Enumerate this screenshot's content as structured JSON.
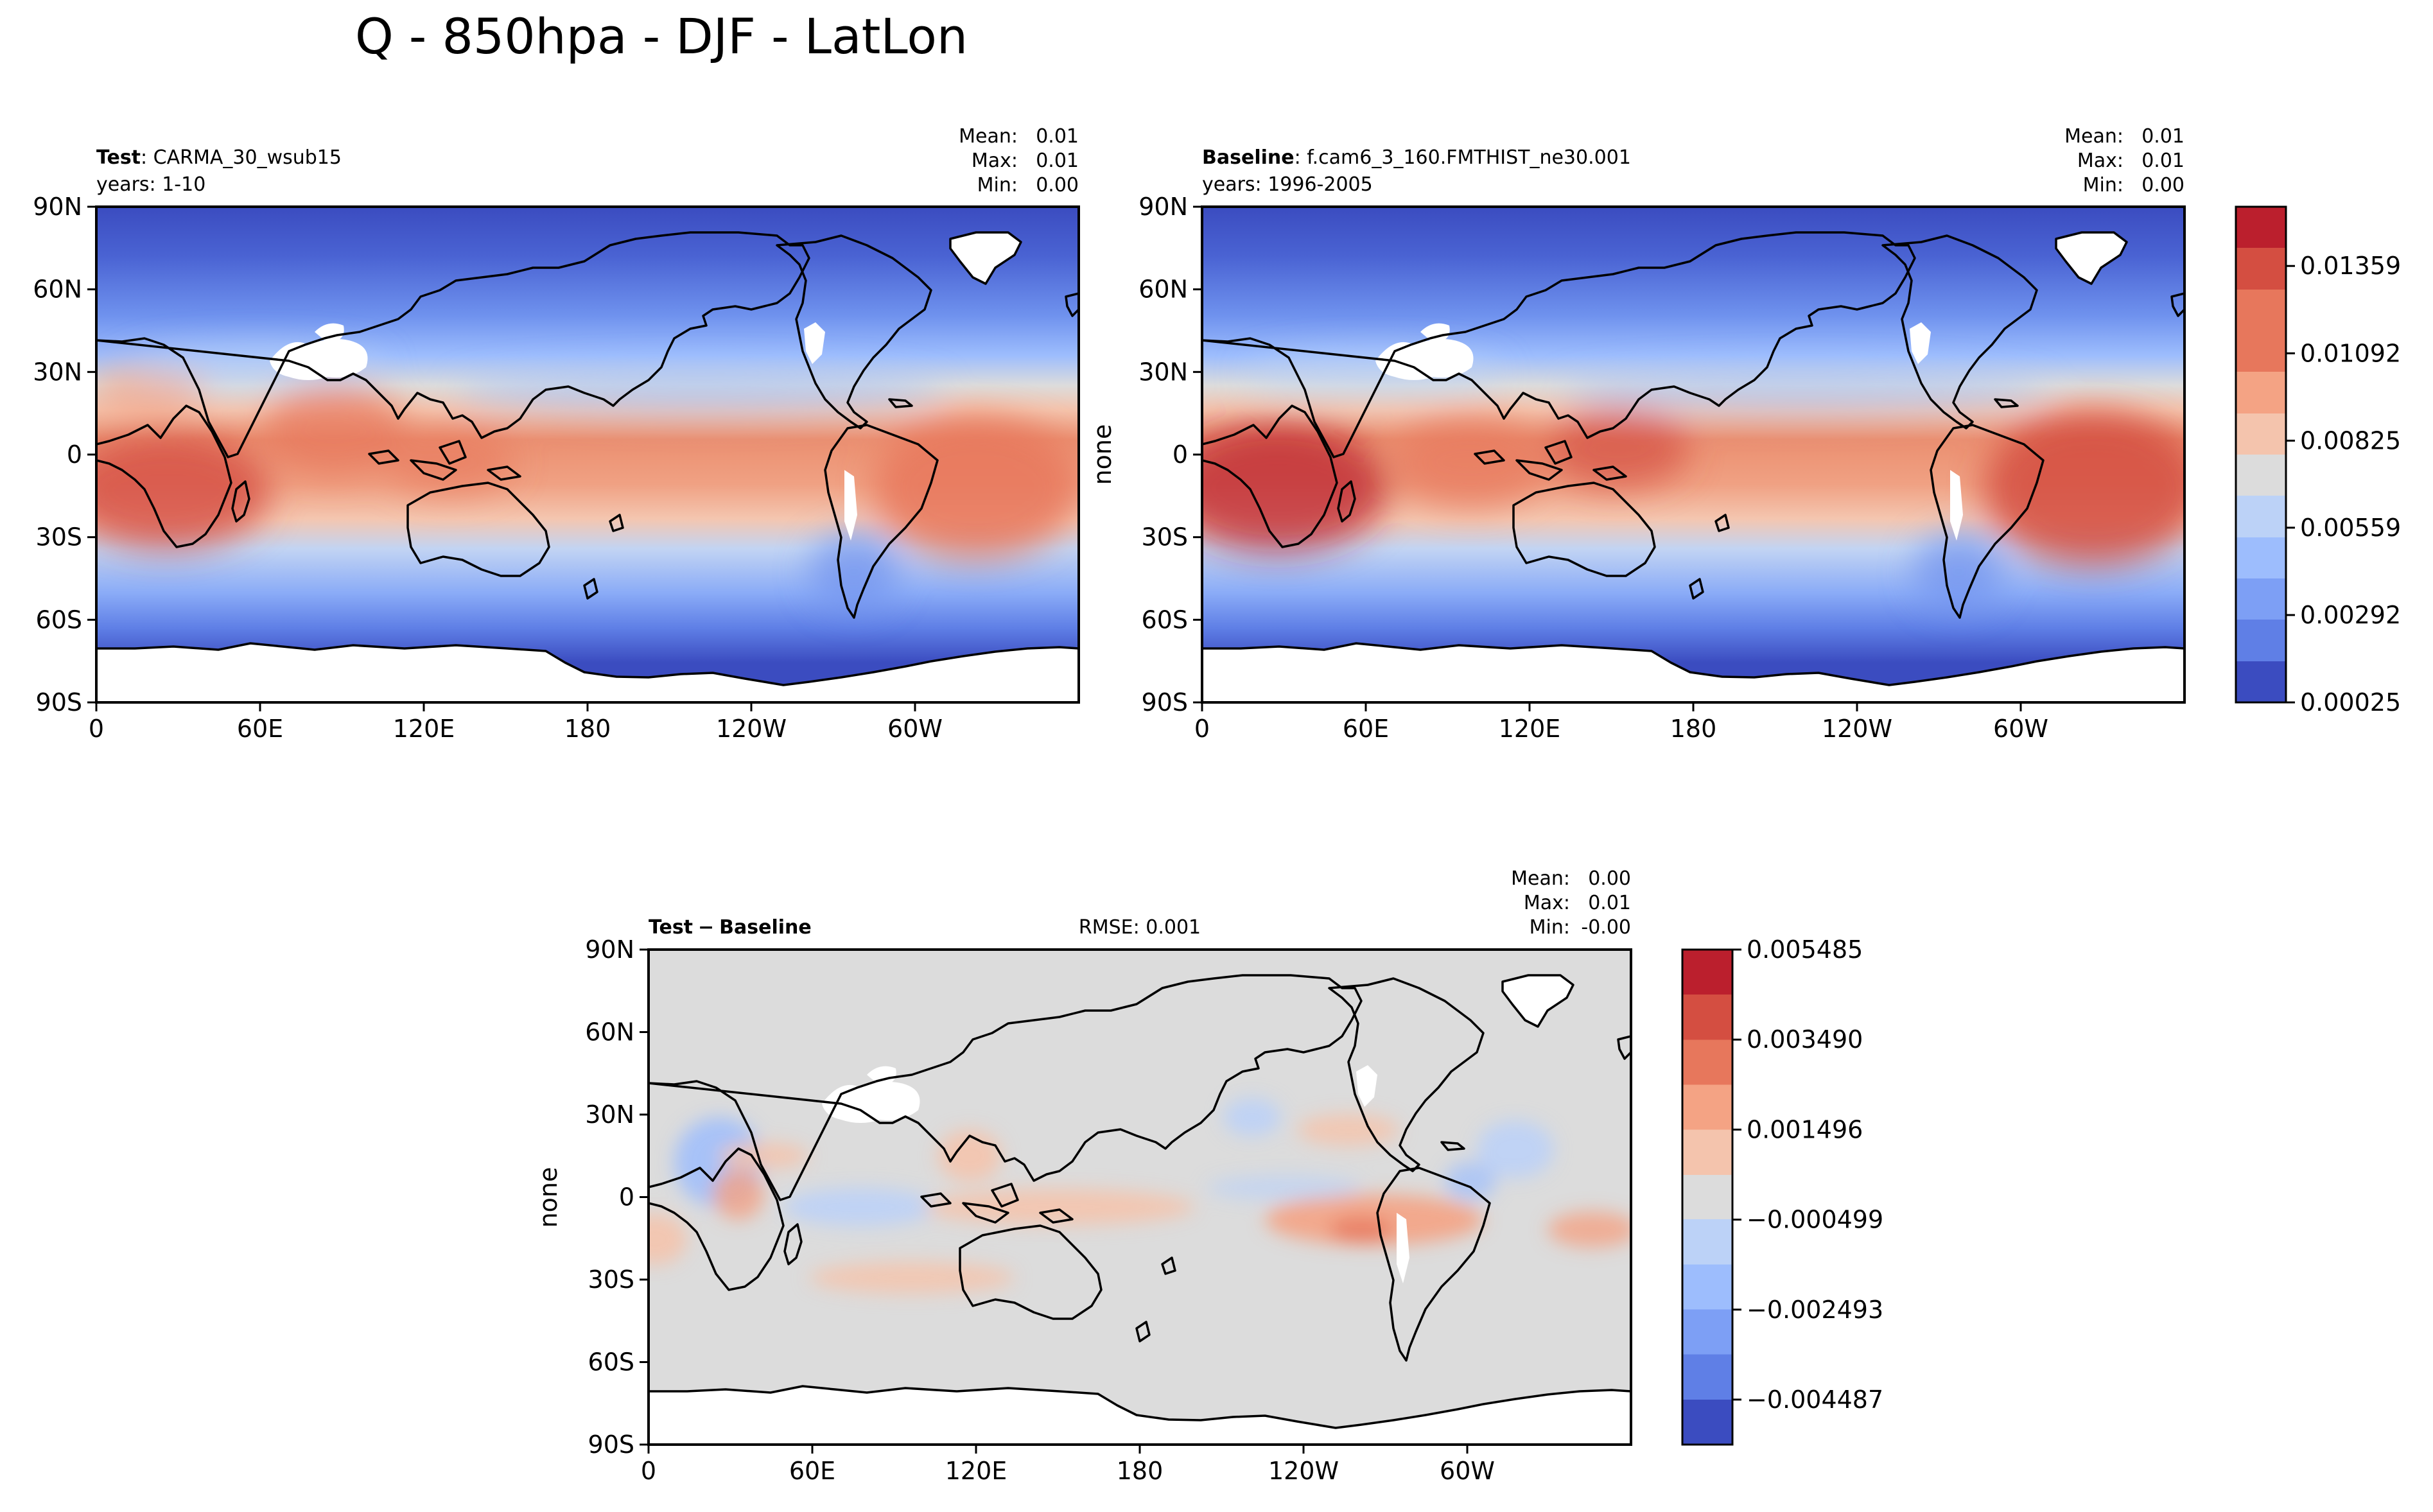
{
  "figure_title": "Q - 850hpa - DJF - LatLon",
  "colors": {
    "cmap": [
      "#3b4cc0",
      "#5f7fe6",
      "#7d9ff5",
      "#9dbdfd",
      "#bcd2f7",
      "#dcdcdc",
      "#f4c4ad",
      "#f4a384",
      "#e7775c",
      "#d44e41",
      "#bb1f2d"
    ],
    "land_missing": "#ffffff",
    "coast": "#000000"
  },
  "chart_data": [
    {
      "type": "heatmap",
      "id": "test",
      "label_bold": "Test",
      "label_rest": ": CARMA_30_wsub15",
      "years": "years: 1-10",
      "stats": [
        {
          "label": "Mean:",
          "value": "0.01"
        },
        {
          "label": "Max:",
          "value": "0.01"
        },
        {
          "label": "Min:",
          "value": "0.00"
        }
      ],
      "ylabel": "",
      "xticks": [
        "0",
        "60E",
        "120E",
        "180",
        "120W",
        "60W"
      ],
      "yticks": [
        "90N",
        "60N",
        "30N",
        "0",
        "30S",
        "60S",
        "90S"
      ],
      "xlim": [
        0,
        360
      ],
      "ylim": [
        -90,
        90
      ],
      "variable": "Q",
      "level": "850hpa",
      "season": "DJF"
    },
    {
      "type": "heatmap",
      "id": "baseline",
      "label_bold": "Baseline",
      "label_rest": ": f.cam6_3_160.FMTHIST_ne30.001",
      "years": "years: 1996-2005",
      "stats": [
        {
          "label": "Mean:",
          "value": "0.01"
        },
        {
          "label": "Max:",
          "value": "0.01"
        },
        {
          "label": "Min:",
          "value": "0.00"
        }
      ],
      "ylabel": "none",
      "xticks": [
        "0",
        "60E",
        "120E",
        "180",
        "120W",
        "60W"
      ],
      "yticks": [
        "90N",
        "60N",
        "30N",
        "0",
        "30S",
        "60S",
        "90S"
      ],
      "xlim": [
        0,
        360
      ],
      "ylim": [
        -90,
        90
      ],
      "colorbar": {
        "levels": [
          0.00025,
          0.00292,
          0.00559,
          0.00825,
          0.01092,
          0.01359,
          0.0154
        ],
        "tick_labels": [
          "0.00025",
          "0.00292",
          "0.00559",
          "0.00825",
          "0.01092",
          "0.01359"
        ]
      }
    },
    {
      "type": "heatmap",
      "id": "diff",
      "label_bold": "Test",
      "label_rest": "Baseline",
      "minus_sign": "−",
      "rmse": "RMSE: 0.001",
      "stats": [
        {
          "label": "Mean:",
          "value": "0.00"
        },
        {
          "label": "Max:",
          "value": "0.01"
        },
        {
          "label": "Min:",
          "value": "-0.00"
        }
      ],
      "ylabel": "none",
      "xticks": [
        "0",
        "60E",
        "120E",
        "180",
        "120W",
        "60W"
      ],
      "yticks": [
        "90N",
        "60N",
        "30N",
        "0",
        "30S",
        "60S",
        "90S"
      ],
      "xlim": [
        0,
        360
      ],
      "ylim": [
        -90,
        90
      ],
      "colorbar": {
        "levels": [
          -0.005484,
          -0.004487,
          -0.002493,
          -0.000499,
          0.001496,
          0.00349,
          0.005485
        ],
        "tick_labels": [
          "−0.004487",
          "−0.002493",
          "−0.000499",
          "0.001496",
          "0.003490",
          "0.005485"
        ]
      }
    }
  ]
}
